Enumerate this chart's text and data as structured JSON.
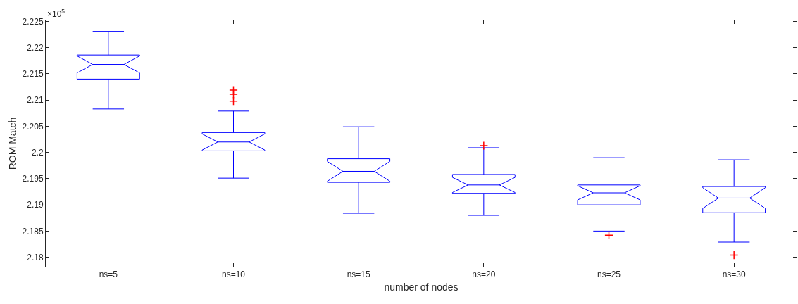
{
  "chart_data": {
    "type": "box",
    "xlabel": "number of nodes",
    "ylabel": "ROM Match",
    "annotations": [
      "×10$^{5}$"
    ],
    "categories": [
      "ns=5",
      "ns=10",
      "ns=15",
      "ns=20",
      "ns=25",
      "ns=30"
    ],
    "series": [
      {
        "color": "#0000ff",
        "boxes": [
          {
            "low": 2.2083,
            "q1": 2.214,
            "median": 2.2168,
            "q3": 2.2186,
            "high": 2.2231
          },
          {
            "low": 2.1951,
            "q1": 2.2003,
            "median": 2.202,
            "q3": 2.2038,
            "high": 2.2079,
            "outliers": [
              2.2119,
              2.2111,
              2.2098
            ]
          },
          {
            "low": 2.1884,
            "q1": 2.1943,
            "median": 2.1964,
            "q3": 2.1988,
            "high": 2.2049
          },
          {
            "low": 2.188,
            "q1": 2.1922,
            "median": 2.1938,
            "q3": 2.1958,
            "high": 2.2009,
            "outliers": [
              2.2013
            ]
          },
          {
            "low": 2.185,
            "q1": 2.19,
            "median": 2.1923,
            "q3": 2.1938,
            "high": 2.199,
            "outliers": [
              2.1842
            ]
          },
          {
            "low": 2.1829,
            "q1": 2.1885,
            "median": 2.1913,
            "q3": 2.1935,
            "high": 2.1986,
            "outliers": [
              2.1804
            ]
          }
        ]
      }
    ],
    "ylim": [
      2.1782,
      2.2252
    ],
    "yticks": [
      2.18,
      2.185,
      2.19,
      2.195,
      2.2,
      2.205,
      2.21,
      2.215,
      2.22,
      2.225
    ],
    "marker": "cross"
  }
}
